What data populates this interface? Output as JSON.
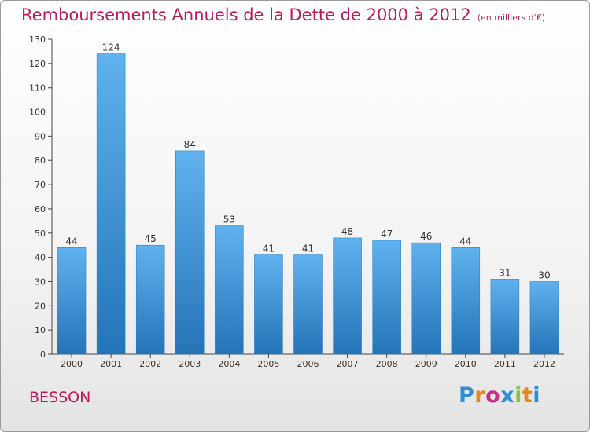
{
  "chart_data": {
    "type": "bar",
    "title": "Remboursements Annuels de la Dette de 2000 à 2012",
    "unit": "(en milliers d'€)",
    "categories": [
      "2000",
      "2001",
      "2002",
      "2003",
      "2004",
      "2005",
      "2006",
      "2007",
      "2008",
      "2009",
      "2010",
      "2011",
      "2012"
    ],
    "values": [
      44,
      124,
      45,
      84,
      53,
      41,
      41,
      48,
      47,
      46,
      44,
      31,
      30
    ],
    "ylim": [
      0,
      130
    ],
    "yticks": [
      0,
      10,
      20,
      30,
      40,
      50,
      60,
      70,
      80,
      90,
      100,
      110,
      120,
      130
    ],
    "grid": false,
    "bar_color": "#3f97dc"
  },
  "commune": "BESSON",
  "logo": {
    "text": "Proxiti",
    "colors": [
      "#2e8fd6",
      "#e8861a",
      "#c42f88",
      "#2e8fd6",
      "#8cc63f",
      "#e8861a",
      "#2e8fd6"
    ]
  }
}
